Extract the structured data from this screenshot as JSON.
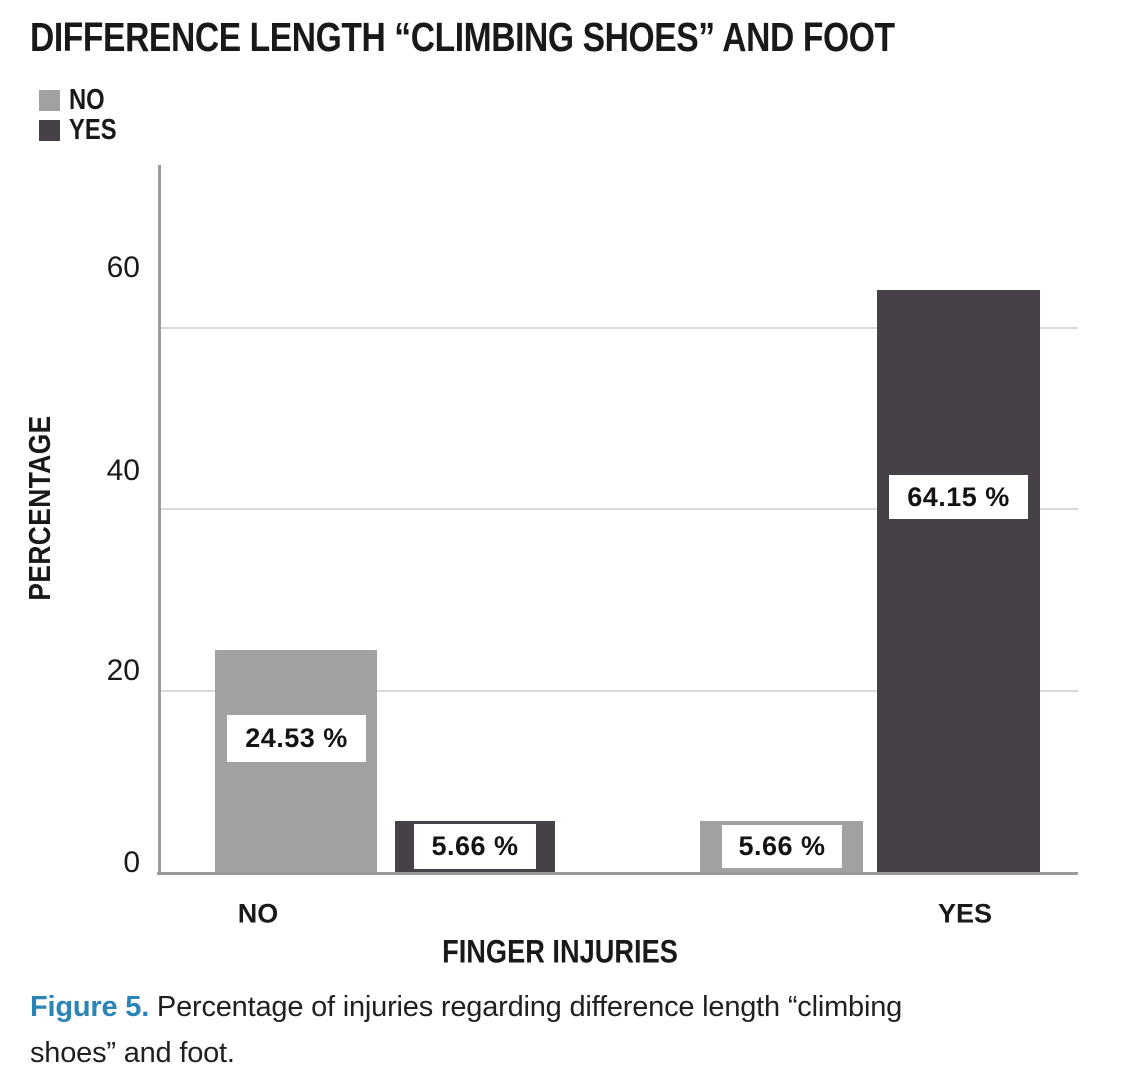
{
  "chart_data": {
    "type": "bar",
    "title": "DIFFERENCE LENGTH “CLIMBING SHOES” AND FOOT",
    "xlabel": "FINGER INJURIES",
    "ylabel": "PERCENTAGE",
    "categories": [
      "NO",
      "YES"
    ],
    "series": [
      {
        "name": "NO",
        "color": "#a3a0a2",
        "values": [
          24.53,
          5.66
        ]
      },
      {
        "name": "YES",
        "color": "#474046",
        "values": [
          5.66,
          64.15
        ]
      }
    ],
    "value_labels": [
      "24.53 %",
      "5.66 %",
      "5.66 %",
      "64.15 %"
    ],
    "yticks": [
      "0",
      "20",
      "40",
      "60"
    ],
    "ylim": [
      0,
      78
    ],
    "grid": "horizontal gridlines at 20, 40, 60",
    "legend_position": "top-left",
    "axis_color": "#9a999b",
    "gridline_color": "#d9d9d9"
  },
  "caption": {
    "label": "Figure 5.",
    "label_color": "#2b84b8",
    "text": "Percentage of injuries regarding difference length “climbing shoes” and foot."
  }
}
